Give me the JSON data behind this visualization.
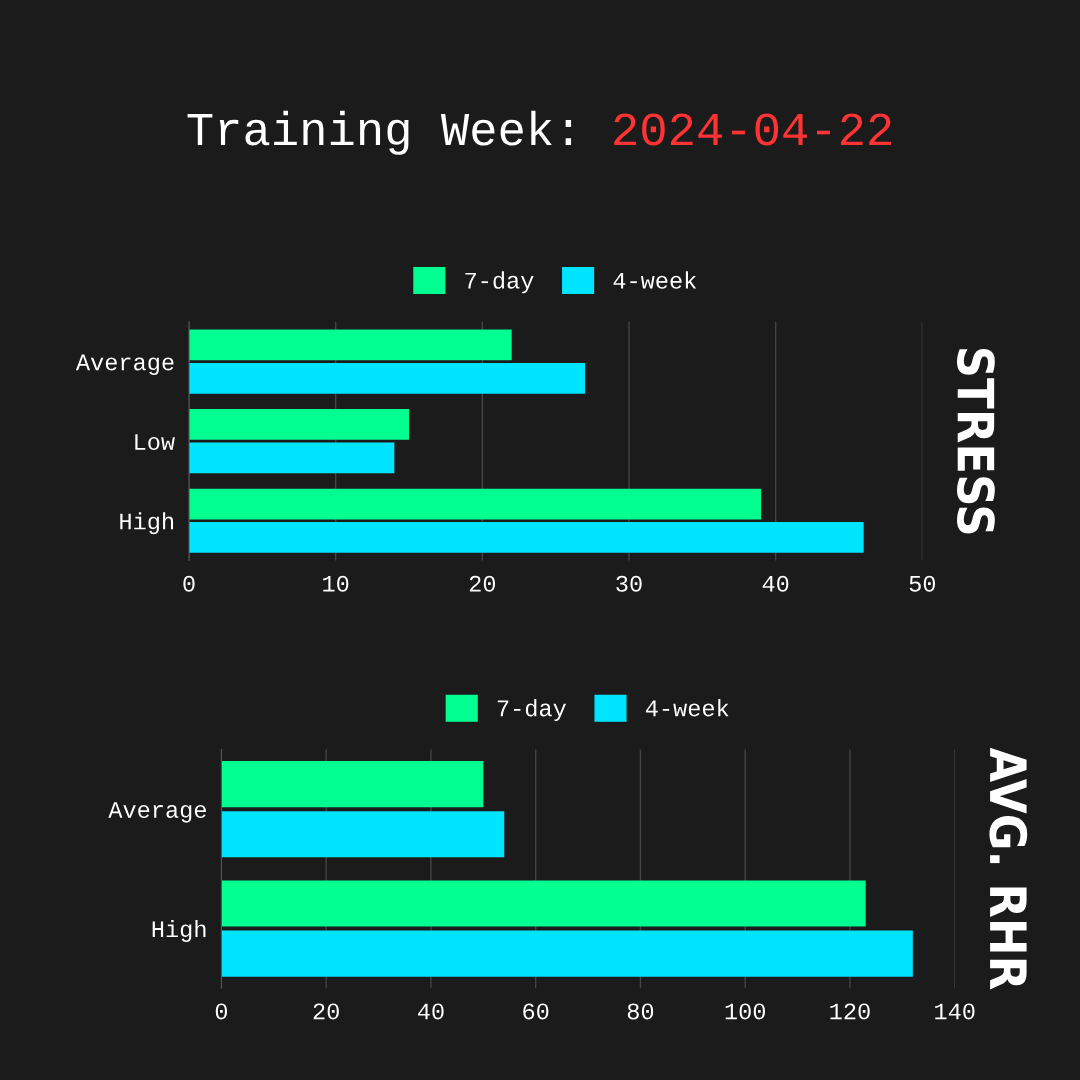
{
  "chart_data": [
    {
      "type": "bar",
      "orientation": "horizontal",
      "title": "Training Week: 2024-04-22",
      "ylabel": "STRESS",
      "categories": [
        "Average",
        "Low",
        "High"
      ],
      "series": [
        {
          "name": "7-day",
          "color": "#00ff90",
          "values": [
            22,
            15,
            39
          ]
        },
        {
          "name": "4-week",
          "color": "#00e5ff",
          "values": [
            27,
            14,
            46
          ]
        }
      ],
      "xlim": [
        0,
        50
      ],
      "xticks": [
        0,
        10,
        20,
        30,
        40,
        50
      ],
      "grid": "x",
      "legend": "top"
    },
    {
      "type": "bar",
      "orientation": "horizontal",
      "ylabel": "AVG. RHR",
      "categories": [
        "Average",
        "High"
      ],
      "series": [
        {
          "name": "7-day",
          "color": "#00ff90",
          "values": [
            50,
            123
          ]
        },
        {
          "name": "4-week",
          "color": "#00e5ff",
          "values": [
            54,
            132
          ]
        }
      ],
      "xlim": [
        0,
        140
      ],
      "xticks": [
        0,
        20,
        40,
        60,
        80,
        100,
        120,
        140
      ],
      "grid": "x",
      "legend": "top"
    }
  ]
}
